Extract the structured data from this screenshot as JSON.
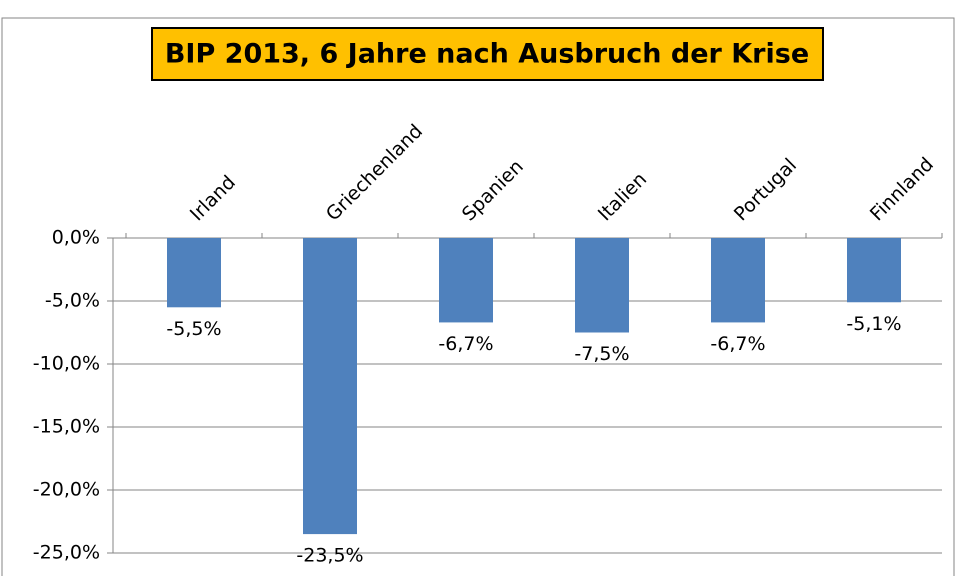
{
  "chart_data": {
    "type": "bar",
    "title": "BIP  2013, 6 Jahre nach Ausbruch der Krise",
    "categories": [
      "Irland",
      "Griechenland",
      "Spanien",
      "Italien",
      "Portugal",
      "Finnland"
    ],
    "values": [
      -5.5,
      -23.5,
      -6.7,
      -7.5,
      -6.7,
      -5.1
    ],
    "value_labels": [
      "-5,5%",
      "-23,5%",
      "-6,7%",
      "-7,5%",
      "-6,7%",
      "-5,1%"
    ],
    "color": "#4f81bd",
    "ylim": [
      -25,
      0
    ],
    "yticks": [
      {
        "value": 0,
        "label": "0,0%"
      },
      {
        "value": -5,
        "label": "-5,0%"
      },
      {
        "value": -10,
        "label": "-10,0%"
      },
      {
        "value": -15,
        "label": "-15,0%"
      },
      {
        "value": -20,
        "label": "-20,0%"
      },
      {
        "value": -25,
        "label": "-25,0%"
      }
    ],
    "grid": true
  }
}
